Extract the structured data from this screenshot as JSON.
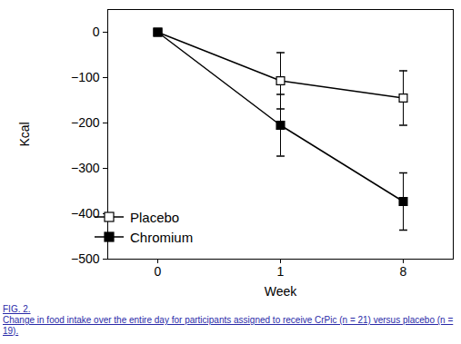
{
  "chart_data": {
    "type": "line",
    "categories": [
      "0",
      "1",
      "8"
    ],
    "x_label": "Week",
    "y_label": "Kcal",
    "ylim": [
      -500,
      50
    ],
    "yticks": [
      0,
      -100,
      -200,
      -300,
      -400,
      -500
    ],
    "legend": "lower left",
    "series": [
      {
        "name": "Placebo",
        "color": "#000000",
        "marker": "square_open",
        "values": [
          0,
          -107,
          -145
        ],
        "errors": [
          null,
          62,
          60
        ]
      },
      {
        "name": "Chromium",
        "color": "#000000",
        "marker": "square",
        "values": [
          0,
          -205,
          -373
        ],
        "errors": [
          null,
          68,
          63
        ]
      }
    ],
    "caption_label": "FIG. 2.",
    "caption": "Change in food intake over the entire day for participants assigned to receive CrPic (n = 21) versus placebo (n = 19)."
  }
}
